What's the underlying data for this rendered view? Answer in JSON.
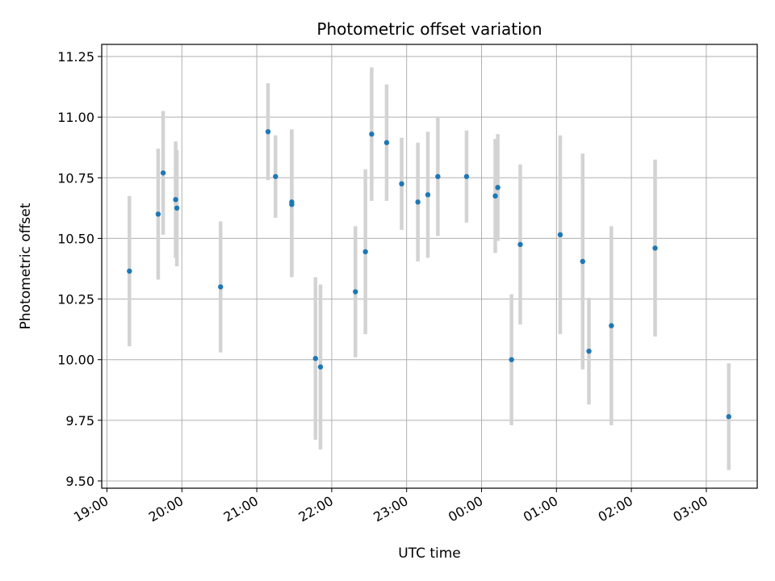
{
  "chart_data": {
    "type": "scatter",
    "title": "Photometric offset variation",
    "xlabel": "UTC time",
    "ylabel": "Photometric offset",
    "x_tick_labels": [
      "19:00",
      "20:00",
      "21:00",
      "22:00",
      "23:00",
      "00:00",
      "01:00",
      "02:00",
      "03:00"
    ],
    "y_ticks": [
      "9.50",
      "9.75",
      "10.00",
      "10.25",
      "10.50",
      "10.75",
      "11.00",
      "11.25"
    ],
    "xlim_hours": [
      18.93,
      27.68
    ],
    "ylim": [
      9.47,
      11.3
    ],
    "grid": true,
    "marker_color": "#1f77b4",
    "errorbar_color": "#d3d3d3",
    "points": [
      {
        "t": "19:18",
        "y": 10.365,
        "err": 0.31
      },
      {
        "t": "19:41",
        "y": 10.6,
        "err": 0.27
      },
      {
        "t": "19:45",
        "y": 10.77,
        "err": 0.255
      },
      {
        "t": "19:55",
        "y": 10.66,
        "err": 0.24
      },
      {
        "t": "19:56",
        "y": 10.625,
        "err": 0.24
      },
      {
        "t": "20:31",
        "y": 10.3,
        "err": 0.27
      },
      {
        "t": "21:09",
        "y": 10.94,
        "err": 0.2
      },
      {
        "t": "21:15",
        "y": 10.755,
        "err": 0.17
      },
      {
        "t": "21:28",
        "y": 10.65,
        "err": 0.3
      },
      {
        "t": "21:28",
        "y": 10.64,
        "err": 0.3
      },
      {
        "t": "21:47",
        "y": 10.005,
        "err": 0.335
      },
      {
        "t": "21:51",
        "y": 9.97,
        "err": 0.34
      },
      {
        "t": "22:19",
        "y": 10.28,
        "err": 0.27
      },
      {
        "t": "22:27",
        "y": 10.445,
        "err": 0.34
      },
      {
        "t": "22:32",
        "y": 10.93,
        "err": 0.275
      },
      {
        "t": "22:44",
        "y": 10.895,
        "err": 0.24
      },
      {
        "t": "22:56",
        "y": 10.725,
        "err": 0.19
      },
      {
        "t": "23:09",
        "y": 10.65,
        "err": 0.245
      },
      {
        "t": "23:17",
        "y": 10.68,
        "err": 0.26
      },
      {
        "t": "23:25",
        "y": 10.755,
        "err": 0.245
      },
      {
        "t": "23:48",
        "y": 10.755,
        "err": 0.19
      },
      {
        "t": "00:11",
        "y": 10.675,
        "err": 0.235
      },
      {
        "t": "00:13",
        "y": 10.71,
        "err": 0.22
      },
      {
        "t": "00:24",
        "y": 10.0,
        "err": 0.27
      },
      {
        "t": "00:31",
        "y": 10.475,
        "err": 0.33
      },
      {
        "t": "01:03",
        "y": 10.515,
        "err": 0.41
      },
      {
        "t": "01:21",
        "y": 10.405,
        "err": 0.445
      },
      {
        "t": "01:26",
        "y": 10.035,
        "err": 0.22
      },
      {
        "t": "01:44",
        "y": 10.14,
        "err": 0.41
      },
      {
        "t": "02:19",
        "y": 10.46,
        "err": 0.365
      },
      {
        "t": "03:18",
        "y": 9.765,
        "err": 0.22
      }
    ]
  }
}
